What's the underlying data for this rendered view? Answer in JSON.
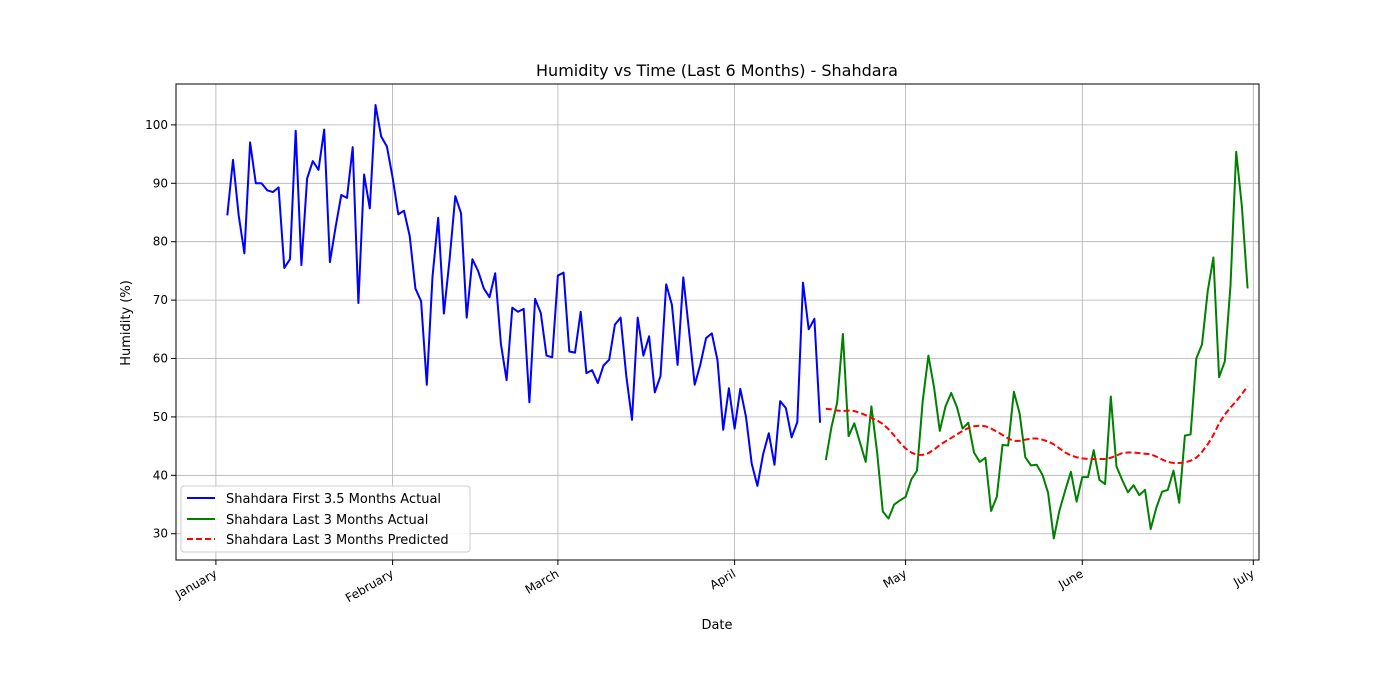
{
  "chart_data": {
    "type": "line",
    "title": "Humidity vs Time (Last 6 Months) - Shahdara",
    "xlabel": "Date",
    "ylabel": "Humidity (%)",
    "x_axis_kind": "date",
    "xlim": [
      "2024-12-25",
      "2024-07-02"
    ],
    "ylim": [
      25.5,
      107.0
    ],
    "grid": true,
    "legend_position": "lower-left",
    "x_ticks": [
      {
        "date": "2024-01-01",
        "label": "January"
      },
      {
        "date": "2024-02-01",
        "label": "February"
      },
      {
        "date": "2024-03-01",
        "label": "March"
      },
      {
        "date": "2024-04-01",
        "label": "April"
      },
      {
        "date": "2024-05-01",
        "label": "May"
      },
      {
        "date": "2024-06-01",
        "label": "June"
      },
      {
        "date": "2024-07-01",
        "label": "July"
      }
    ],
    "y_ticks": [
      30,
      40,
      50,
      60,
      70,
      80,
      90,
      100
    ],
    "series": [
      {
        "name": "Shahdara First 3.5 Months Actual",
        "color": "#0000ff",
        "style": "solid",
        "start_date": "2024-01-03",
        "values": [
          84.5,
          94.0,
          84.5,
          78.0,
          97.0,
          90.0,
          90.0,
          88.8,
          88.5,
          89.3,
          75.5,
          77.0,
          99.0,
          76.0,
          90.8,
          93.8,
          92.3,
          99.2,
          76.5,
          82.5,
          88.0,
          87.5,
          96.2,
          69.5,
          91.5,
          85.7,
          103.4,
          98.0,
          96.3,
          91.0,
          84.7,
          85.3,
          81.0,
          72.0,
          69.8,
          55.5,
          74.0,
          84.1,
          67.7,
          77.0,
          87.8,
          84.9,
          67.0,
          77.0,
          75.0,
          72.0,
          70.5,
          74.6,
          62.5,
          56.3,
          68.7,
          68.0,
          68.5,
          52.5,
          70.2,
          67.8,
          60.5,
          60.2,
          74.2,
          74.7,
          61.2,
          61.0,
          68.0,
          57.5,
          58.0,
          55.8,
          58.8,
          59.8,
          65.8,
          67.0,
          57.0,
          49.5,
          67.0,
          60.5,
          63.8,
          54.2,
          57.0,
          72.7,
          69.2,
          58.9,
          73.9,
          64.8,
          55.5,
          59.0,
          63.5,
          64.3,
          59.7,
          47.8,
          54.9,
          48.0,
          54.8,
          50.0,
          42.0,
          38.2,
          43.6,
          47.2,
          41.8,
          52.7,
          51.5,
          46.5,
          49.1,
          73.0,
          65.0,
          66.8,
          49.0
        ]
      },
      {
        "name": "Shahdara Last 3 Months Actual",
        "color": "#008000",
        "style": "solid",
        "start_date": "2024-04-17",
        "values": [
          42.6,
          48.3,
          52.5,
          64.2,
          46.7,
          48.9,
          45.6,
          42.3,
          51.8,
          44.0,
          33.8,
          32.6,
          35.0,
          35.7,
          36.3,
          39.3,
          40.8,
          52.7,
          60.5,
          55.0,
          47.6,
          51.8,
          54.1,
          51.7,
          48.0,
          49.0,
          43.9,
          42.3,
          43.0,
          33.9,
          36.3,
          45.2,
          45.1,
          54.3,
          50.6,
          43.1,
          41.7,
          41.8,
          40.1,
          37.0,
          29.2,
          34.0,
          37.4,
          40.6,
          35.5,
          39.7,
          39.7,
          44.3,
          39.2,
          38.5,
          53.5,
          41.5,
          39.2,
          37.1,
          38.3,
          36.6,
          37.5,
          30.8,
          34.5,
          37.2,
          37.5,
          40.8,
          35.3,
          46.8,
          47.0,
          60.0,
          62.4,
          71.5,
          77.3,
          56.8,
          59.5,
          72.5,
          95.4,
          86.0,
          72.0
        ]
      },
      {
        "name": "Shahdara Last 3 Months Predicted",
        "color": "#ff0000",
        "style": "dashed",
        "start_date": "2024-04-17",
        "values": [
          51.4,
          51.3,
          51.1,
          51.0,
          51.1,
          51.0,
          50.7,
          50.3,
          49.8,
          49.4,
          48.8,
          47.9,
          46.8,
          45.6,
          44.6,
          43.9,
          43.5,
          43.5,
          43.8,
          44.4,
          45.2,
          45.8,
          46.4,
          47.0,
          47.6,
          48.1,
          48.4,
          48.5,
          48.4,
          48.0,
          47.5,
          46.9,
          46.3,
          45.9,
          45.9,
          46.1,
          46.3,
          46.3,
          46.1,
          45.8,
          45.3,
          44.6,
          43.9,
          43.4,
          43.1,
          42.9,
          42.8,
          42.8,
          42.8,
          42.8,
          43.0,
          43.4,
          43.8,
          43.9,
          43.9,
          43.8,
          43.7,
          43.6,
          43.2,
          42.7,
          42.3,
          42.1,
          42.1,
          42.2,
          42.5,
          43.0,
          44.0,
          45.3,
          46.9,
          48.9,
          50.4,
          51.6,
          52.7,
          53.9,
          55.3
        ]
      }
    ]
  }
}
